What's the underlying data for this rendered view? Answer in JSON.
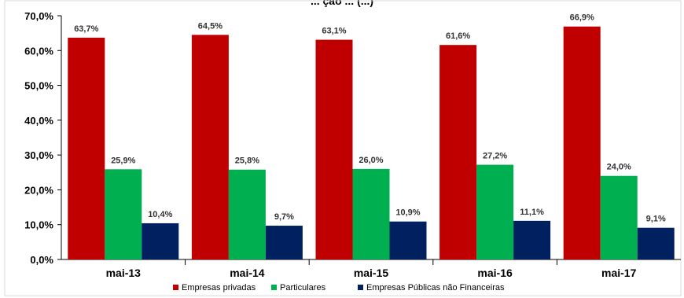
{
  "chart_data": {
    "type": "bar",
    "title": "... ção ... (...)",
    "categories": [
      "mai-13",
      "mai-14",
      "mai-15",
      "mai-16",
      "mai-17"
    ],
    "series": [
      {
        "name": "Empresas privadas",
        "color": "#c00000",
        "values": [
          63.7,
          64.5,
          63.1,
          61.6,
          66.9
        ],
        "labels": [
          "63,7%",
          "64,5%",
          "63,1%",
          "61,6%",
          "66,9%"
        ]
      },
      {
        "name": "Particulares",
        "color": "#00b050",
        "values": [
          25.9,
          25.8,
          26.0,
          27.2,
          24.0
        ],
        "labels": [
          "25,9%",
          "25,8%",
          "26,0%",
          "27,2%",
          "24,0%"
        ]
      },
      {
        "name": "Empresas Públicas não Financeiras",
        "color": "#002060",
        "values": [
          10.4,
          9.7,
          10.9,
          11.1,
          9.1
        ],
        "labels": [
          "10,4%",
          "9,7%",
          "10,9%",
          "11,1%",
          "9,1%"
        ]
      }
    ],
    "ylim": [
      0,
      70
    ],
    "yticks": [
      0,
      10,
      20,
      30,
      40,
      50,
      60,
      70
    ],
    "ytick_labels": [
      "0,0%",
      "10,0%",
      "20,0%",
      "30,0%",
      "40,0%",
      "50,0%",
      "60,0%",
      "70,0%"
    ],
    "xlabel": "",
    "ylabel": "",
    "grid": false,
    "legend_position": "bottom"
  }
}
